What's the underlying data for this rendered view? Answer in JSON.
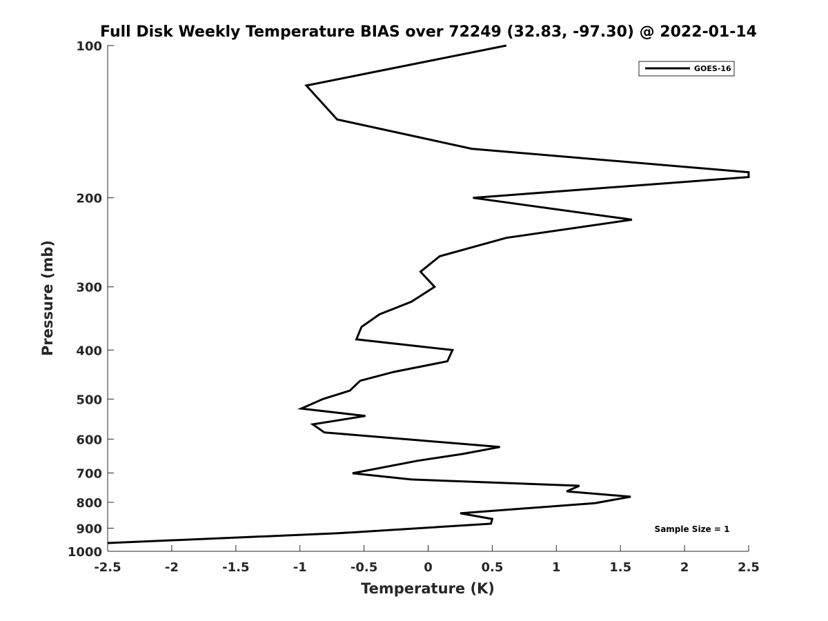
{
  "chart_data": {
    "type": "line",
    "title": "Full Disk Weekly Temperature BIAS over 72249 (32.83, -97.30) @ 2022-01-14",
    "xlabel": "Temperature (K)",
    "ylabel": "Pressure (mb)",
    "xlim": [
      -2.5,
      2.5
    ],
    "ylim": [
      100,
      1000
    ],
    "yscale": "log",
    "yreversed": true,
    "grid": false,
    "xticks": [
      "-2.5",
      "-2",
      "-1.5",
      "-1",
      "-0.5",
      "0",
      "0.5",
      "1",
      "1.5",
      "2",
      "2.5"
    ],
    "yticks": [
      "100",
      "200",
      "300",
      "400",
      "500",
      "600",
      "700",
      "800",
      "900",
      "1000"
    ],
    "legend": {
      "placement": "top-right",
      "entries": [
        "GOES-16"
      ]
    },
    "annotation": "Sample Size = 1",
    "series": [
      {
        "name": "GOES-16",
        "color": "#000000",
        "x": [
          0.61,
          -0.95,
          -0.71,
          0.34,
          2.5,
          2.5,
          0.35,
          1.59,
          0.61,
          0.09,
          -0.06,
          0.05,
          -0.13,
          -0.38,
          -0.52,
          -0.56,
          0.19,
          0.15,
          -0.27,
          -0.53,
          -0.61,
          -0.82,
          -0.99,
          -0.49,
          -0.9,
          -0.81,
          0.56,
          0.27,
          -0.08,
          -0.59,
          -0.13,
          1.18,
          1.08,
          1.58,
          1.3,
          0.25,
          0.5,
          0.49,
          -0.7,
          -2.5
        ],
        "pressure": [
          100,
          120,
          140,
          160,
          178,
          182,
          200,
          221,
          240,
          261,
          280,
          300,
          321,
          340,
          360,
          381,
          400,
          421,
          442,
          460,
          481,
          500,
          522,
          540,
          561,
          582,
          622,
          642,
          662,
          701,
          721,
          742,
          761,
          780,
          803,
          841,
          863,
          882,
          921,
          963
        ]
      }
    ]
  }
}
